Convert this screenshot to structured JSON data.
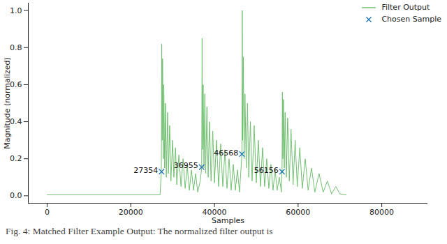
{
  "chart_data": {
    "type": "line",
    "x_label": "Samples",
    "y_label": "Magnitude (normalized)",
    "caption": "Fig. 4: Matched Filter Example Output: The normalized filter output is",
    "xlim": [
      -4500,
      91000
    ],
    "xticks": [
      0,
      20000,
      40000,
      60000,
      80000
    ],
    "ylim": [
      -0.04,
      1.04
    ],
    "yticks": [
      {
        "value": 0,
        "label": "0.0"
      },
      {
        "value": 0.2,
        "label": "0.2"
      },
      {
        "value": 0.4,
        "label": "0.4"
      },
      {
        "value": 0.6,
        "label": "0.6"
      },
      {
        "value": 0.8,
        "label": "0.8"
      },
      {
        "value": 1.0,
        "label": "1.0"
      }
    ],
    "grid": false,
    "legend": "upper right",
    "series": [
      {
        "name": "Filter Output",
        "type": "line",
        "color": "#72c072",
        "x": [
          0,
          27000,
          27300,
          27400,
          27500,
          27600,
          27800,
          27900,
          28100,
          28300,
          28500,
          28800,
          29000,
          29300,
          29600,
          30000,
          30300,
          30700,
          31000,
          31500,
          32000,
          32500,
          33000,
          33500,
          34000,
          34500,
          35000,
          35500,
          36000,
          36600,
          36955,
          37050,
          37150,
          37300,
          37500,
          37700,
          37900,
          38200,
          38500,
          38800,
          39200,
          39600,
          40000,
          40500,
          41000,
          41500,
          42000,
          42500,
          43000,
          43500,
          44000,
          44500,
          45000,
          45500,
          46000,
          46568,
          46650,
          46750,
          46900,
          47100,
          47300,
          47600,
          47900,
          48200,
          48600,
          49000,
          49500,
          50000,
          50500,
          51000,
          51500,
          52000,
          52500,
          53000,
          53500,
          54000,
          54500,
          55000,
          55500,
          56000,
          56156,
          56250,
          56350,
          56500,
          56700,
          56900,
          57200,
          57500,
          57900,
          58300,
          58800,
          59300,
          59800,
          60400,
          61000,
          61700,
          62400,
          63200,
          64000,
          65000,
          66000,
          67000,
          68000,
          69000,
          70000,
          71500
        ],
        "values": [
          0.005,
          0.005,
          0.13,
          0.82,
          0.3,
          0.74,
          0.2,
          0.6,
          0.15,
          0.5,
          0.1,
          0.45,
          0.12,
          0.38,
          0.08,
          0.3,
          0.1,
          0.26,
          0.06,
          0.22,
          0.05,
          0.2,
          0.04,
          0.16,
          0.03,
          0.14,
          0.03,
          0.12,
          0.02,
          0.08,
          0.15,
          0.85,
          0.25,
          0.6,
          0.15,
          0.55,
          0.12,
          0.48,
          0.1,
          0.4,
          0.08,
          0.35,
          0.07,
          0.3,
          0.05,
          0.28,
          0.05,
          0.24,
          0.04,
          0.2,
          0.03,
          0.17,
          0.03,
          0.14,
          0.02,
          0.225,
          1.0,
          0.3,
          0.75,
          0.2,
          0.55,
          0.15,
          0.5,
          0.1,
          0.4,
          0.08,
          0.38,
          0.07,
          0.3,
          0.05,
          0.26,
          0.05,
          0.2,
          0.04,
          0.17,
          0.03,
          0.14,
          0.03,
          0.1,
          0.02,
          0.13,
          0.56,
          0.2,
          0.52,
          0.15,
          0.45,
          0.1,
          0.42,
          0.08,
          0.36,
          0.06,
          0.3,
          0.05,
          0.26,
          0.04,
          0.2,
          0.03,
          0.15,
          0.02,
          0.12,
          0.02,
          0.08,
          0.01,
          0.05,
          0.01,
          0.005
        ]
      },
      {
        "name": "Chosen Sample",
        "type": "scatter",
        "marker": "x",
        "color": "#1f77b4",
        "x": [
          27354,
          36955,
          46568,
          56156
        ],
        "values": [
          0.13,
          0.155,
          0.225,
          0.13
        ],
        "labels": [
          "27354",
          "36955",
          "46568",
          "56156"
        ]
      }
    ]
  }
}
